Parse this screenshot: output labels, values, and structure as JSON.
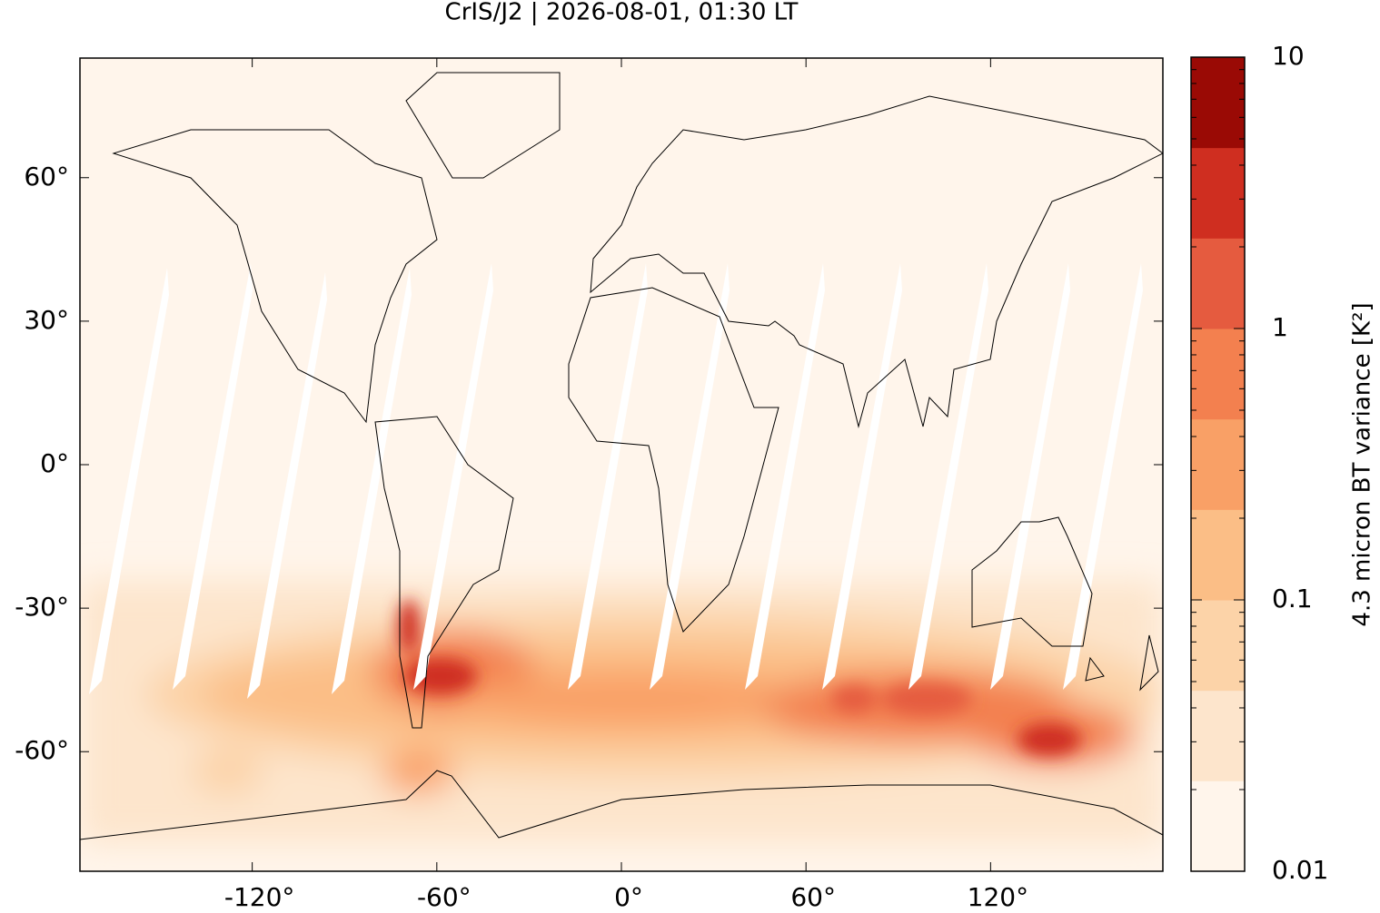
{
  "chart_data": {
    "type": "map",
    "title": "CrIS/J2 | 2026-08-01, 01:30 LT",
    "xlim": [
      -176,
      176
    ],
    "ylim": [
      -85,
      85
    ],
    "xticks": [
      {
        "value": -120,
        "label": "-120°"
      },
      {
        "value": -60,
        "label": "-60°"
      },
      {
        "value": 0,
        "label": "0°"
      },
      {
        "value": 60,
        "label": "60°"
      },
      {
        "value": 120,
        "label": "120°"
      }
    ],
    "yticks": [
      {
        "value": -60,
        "label": "-60°"
      },
      {
        "value": -30,
        "label": "-30°"
      },
      {
        "value": 0,
        "label": "0°"
      },
      {
        "value": 30,
        "label": "30°"
      },
      {
        "value": 60,
        "label": "60°"
      }
    ],
    "colorbar": {
      "label": "4.3 micron BT variance [K²]",
      "log_scale": true,
      "clim": [
        0.01,
        10
      ],
      "ticks": [
        0.01,
        0.1,
        1,
        10
      ],
      "minor_ticks": [
        0.02,
        0.03,
        0.04,
        0.05,
        0.06,
        0.07,
        0.08,
        0.09,
        0.2,
        0.3,
        0.4,
        0.5,
        0.6,
        0.7,
        0.8,
        0.9,
        2,
        3,
        4,
        5,
        6,
        7,
        8,
        9
      ],
      "colors": [
        "#fff5eb",
        "#fde5cc",
        "#fcd3a8",
        "#fbbe86",
        "#f9a066",
        "#f3804f",
        "#e55b3f",
        "#cf2e20",
        "#9a0a05"
      ]
    }
  }
}
